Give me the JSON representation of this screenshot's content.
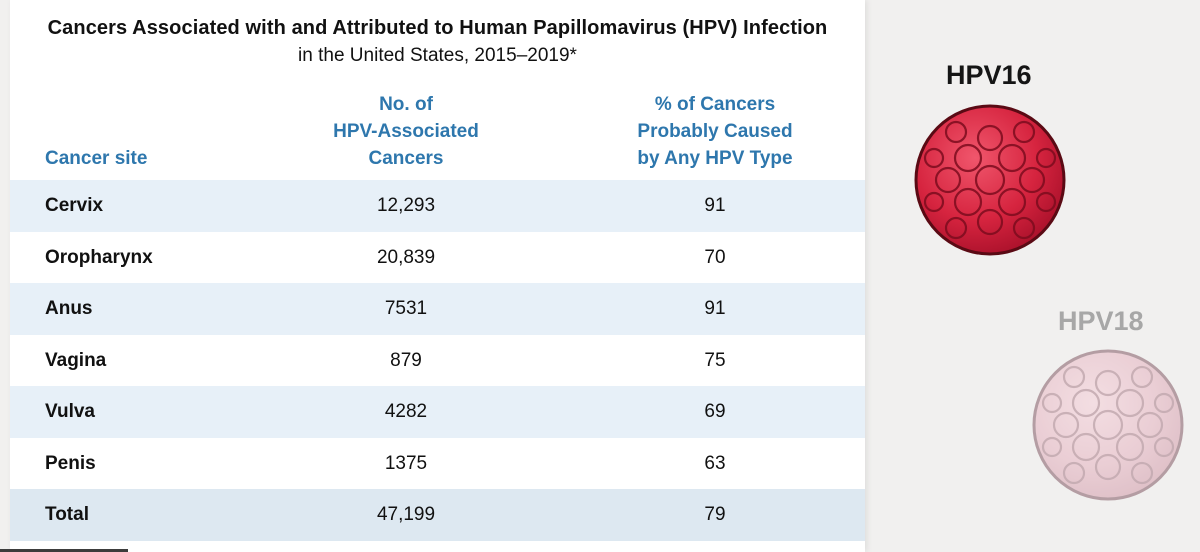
{
  "table": {
    "title": "Cancers Associated with and Attributed to Human Papillomavirus (HPV) Infection",
    "subtitle": "in the United States, 2015–2019*",
    "headers": {
      "site": "Cancer site",
      "count": [
        "No. of",
        "HPV-Associated",
        "Cancers"
      ],
      "pct": [
        "% of Cancers",
        "Probably Caused",
        "by Any HPV Type"
      ]
    },
    "rows": [
      {
        "site": "Cervix",
        "count": "12,293",
        "pct": "91"
      },
      {
        "site": "Oropharynx",
        "count": "20,839",
        "pct": "70"
      },
      {
        "site": "Anus",
        "count": "7531",
        "pct": "91"
      },
      {
        "site": "Vagina",
        "count": "879",
        "pct": "75"
      },
      {
        "site": "Vulva",
        "count": "4282",
        "pct": "69"
      },
      {
        "site": "Penis",
        "count": "1375",
        "pct": "63"
      },
      {
        "site": "Total",
        "count": "47,199",
        "pct": "79"
      }
    ],
    "colors": {
      "header_text": "#2e77ad",
      "row_tint": "#e7f0f8",
      "total_row": "#dde8f1"
    }
  },
  "illustrations": {
    "hpv16": {
      "label": "HPV16",
      "icon": "hpv16-virus-icon",
      "color": "#d6243f"
    },
    "hpv18": {
      "label": "HPV18",
      "icon": "hpv18-virus-icon",
      "color": "#e3a6b6"
    }
  }
}
